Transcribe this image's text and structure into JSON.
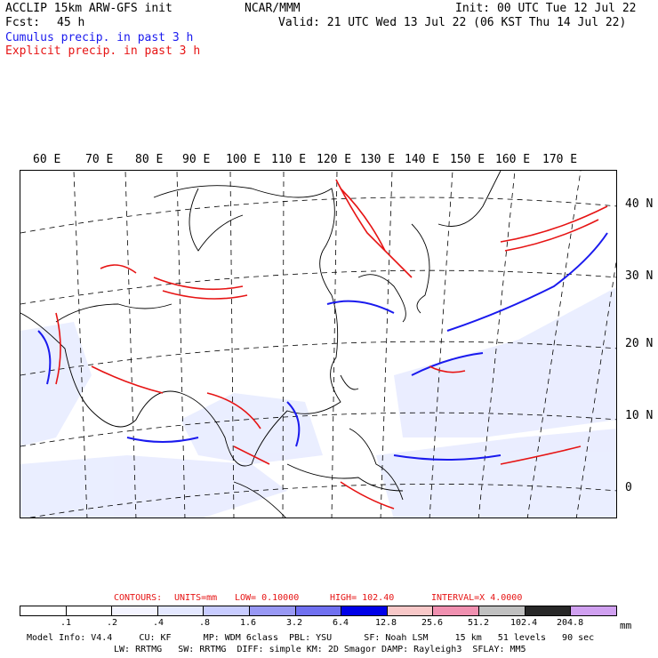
{
  "header": {
    "model": "ACCLIP 15km ARW-GFS init",
    "center": "NCAR/MMM",
    "init": "Init: 00 UTC Tue 12 Jul 22",
    "fcst_label": "Fcst:",
    "fcst_value": "45 h",
    "valid": "Valid: 21 UTC Wed 13 Jul 22 (06 KST Thu 14 Jul 22)",
    "cumulus": "Cumulus precip. in past 3 h",
    "explicit": "Explicit precip. in past 3 h"
  },
  "colors": {
    "cumulus": "#1a1aee",
    "explicit": "#e61414"
  },
  "map": {
    "lon_labels": [
      "60 E",
      "70 E",
      "80 E",
      "90 E",
      "100 E",
      "110 E",
      "120 E",
      "130 E",
      "140 E",
      "150 E",
      "160 E",
      "170 E"
    ],
    "lat_labels": [
      "40 N",
      "30 N",
      "20 N",
      "10 N",
      "0"
    ]
  },
  "contours": {
    "label": "CONTOURS:",
    "units": "UNITS=mm",
    "low": "LOW= 0.10000",
    "high": "HIGH= 102.40",
    "interval": "INTERVAL=X 4.0000"
  },
  "colorbar": {
    "colors": [
      "#ffffff",
      "#ffffff",
      "#f4f4ff",
      "#e4e8ff",
      "#c8ccff",
      "#9898f4",
      "#7070f0",
      "#0000e8",
      "#f8c8c8",
      "#f090b0",
      "#c0c0c0",
      "#282828",
      "#d0a0f0"
    ],
    "labels": [
      ".1",
      ".2",
      ".4",
      ".8",
      "1.6",
      "3.2",
      "6.4",
      "12.8",
      "25.6",
      "51.2",
      "102.4",
      "204.8"
    ],
    "unit": "mm"
  },
  "footer": {
    "line1": "Model Info: V4.4     CU: KF      MP: WDM 6class  PBL: YSU      SF: Noah LSM     15 km   51 levels   90 sec",
    "line2": "LW: RRTMG   SW: RRTMG  DIFF: simple KM: 2D Smagor DAMP: Rayleigh3  SFLAY: MM5"
  }
}
